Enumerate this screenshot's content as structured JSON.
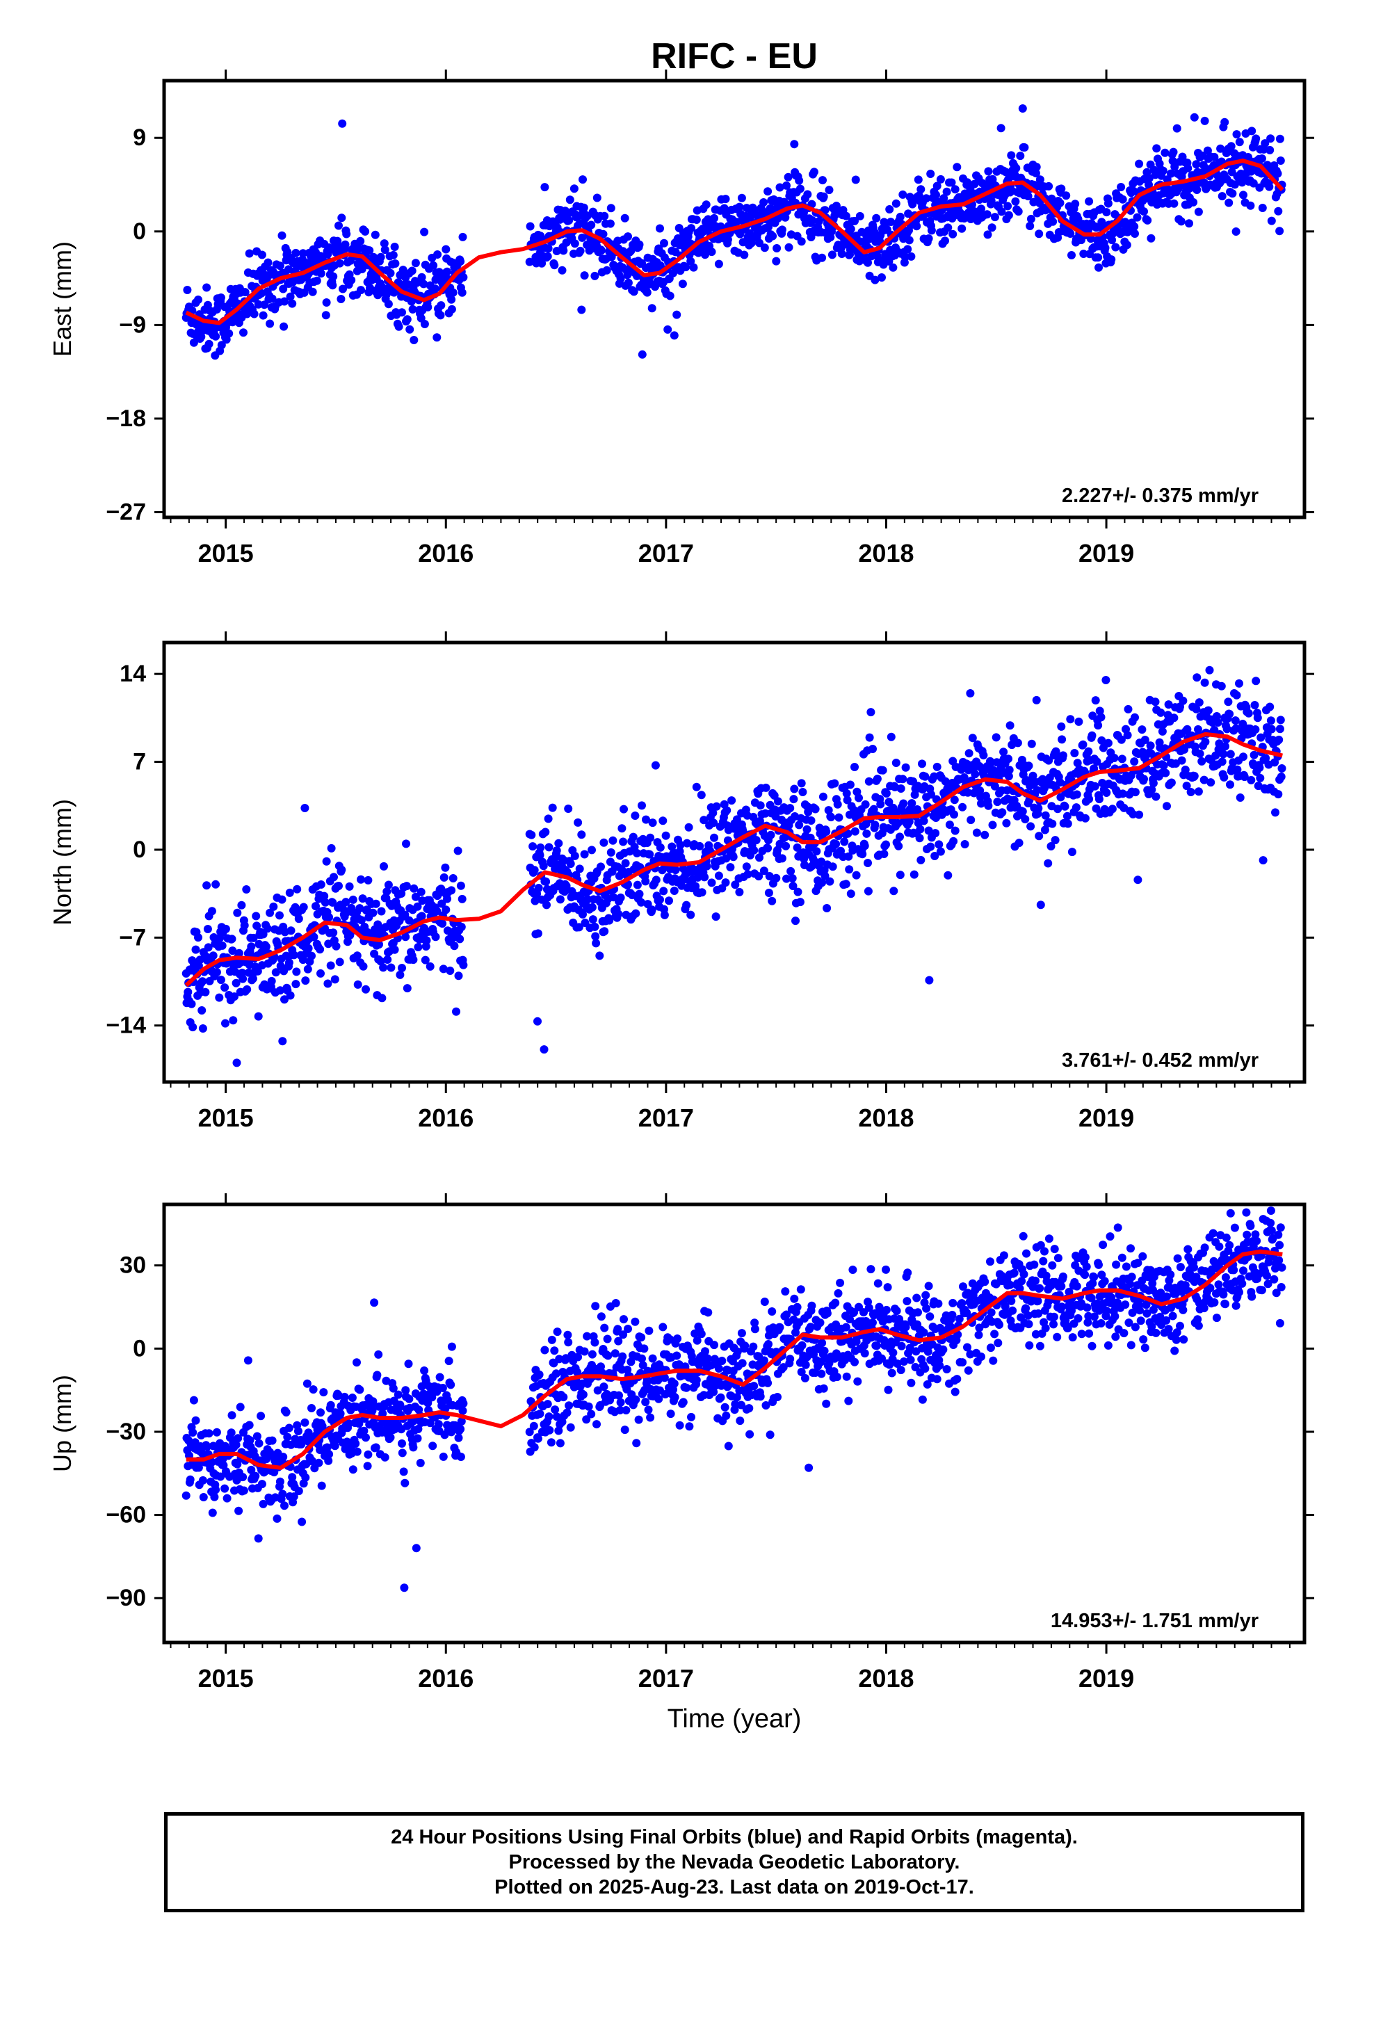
{
  "title": "RIFC - EU",
  "xlabel": "Time (year)",
  "caption": [
    "24 Hour Positions Using Final Orbits (blue) and Rapid Orbits (magenta).",
    "Processed by the Nevada Geodetic Laboratory.",
    "Plotted on 2025-Aug-23. Last data on 2019-Oct-17."
  ],
  "colors": {
    "points": "#0000ff",
    "model": "#ff0000",
    "frame": "#000000"
  },
  "chart_data": [
    {
      "type": "scatter",
      "ylabel": "East (mm)",
      "xlim": [
        2014.72,
        2019.9
      ],
      "ylim": [
        -27.5,
        14.5
      ],
      "xticks": [
        2015,
        2016,
        2017,
        2018,
        2019
      ],
      "yticks": [
        9,
        0,
        -9,
        -18,
        -27
      ],
      "rate_label": "2.227+/- 0.375 mm/yr",
      "model": {
        "x": [
          2014.82,
          2014.9,
          2014.97,
          2015.05,
          2015.15,
          2015.25,
          2015.35,
          2015.45,
          2015.55,
          2015.62,
          2015.7,
          2015.8,
          2015.9,
          2015.97,
          2016.05,
          2016.15,
          2016.25,
          2016.35,
          2016.45,
          2016.55,
          2016.62,
          2016.7,
          2016.8,
          2016.9,
          2016.97,
          2017.05,
          2017.15,
          2017.25,
          2017.35,
          2017.45,
          2017.55,
          2017.62,
          2017.7,
          2017.8,
          2017.9,
          2017.97,
          2018.05,
          2018.15,
          2018.25,
          2018.35,
          2018.45,
          2018.55,
          2018.62,
          2018.7,
          2018.8,
          2018.9,
          2018.97,
          2019.05,
          2019.15,
          2019.25,
          2019.35,
          2019.45,
          2019.55,
          2019.62,
          2019.7,
          2019.8
        ],
        "y": [
          -7.8,
          -8.6,
          -8.8,
          -7.5,
          -5.5,
          -4.5,
          -4.0,
          -3.0,
          -2.2,
          -2.4,
          -4.0,
          -5.8,
          -6.6,
          -6.0,
          -4.0,
          -2.5,
          -2.0,
          -1.7,
          -1.0,
          0.0,
          0.1,
          -0.7,
          -2.5,
          -4.2,
          -4.0,
          -2.8,
          -1.0,
          0.0,
          0.5,
          1.2,
          2.2,
          2.5,
          1.8,
          0.0,
          -2.0,
          -1.6,
          0.0,
          1.8,
          2.4,
          2.6,
          3.6,
          4.6,
          4.7,
          3.5,
          1.0,
          -0.3,
          -0.3,
          1.0,
          3.5,
          4.5,
          4.8,
          5.3,
          6.5,
          6.8,
          6.3,
          4.0
        ]
      }
    },
    {
      "type": "scatter",
      "ylabel": "North (mm)",
      "xlim": [
        2014.72,
        2019.9
      ],
      "ylim": [
        -18.5,
        16.5
      ],
      "xticks": [
        2015,
        2016,
        2017,
        2018,
        2019
      ],
      "yticks": [
        14,
        7,
        0,
        -7,
        -14
      ],
      "rate_label": "3.761+/- 0.452 mm/yr",
      "model": {
        "x": [
          2014.82,
          2014.9,
          2014.97,
          2015.05,
          2015.15,
          2015.25,
          2015.35,
          2015.45,
          2015.55,
          2015.62,
          2015.7,
          2015.8,
          2015.9,
          2015.97,
          2016.05,
          2016.15,
          2016.25,
          2016.35,
          2016.45,
          2016.55,
          2016.62,
          2016.7,
          2016.8,
          2016.9,
          2016.97,
          2017.05,
          2017.15,
          2017.25,
          2017.35,
          2017.45,
          2017.55,
          2017.62,
          2017.7,
          2017.8,
          2017.9,
          2017.97,
          2018.05,
          2018.15,
          2018.25,
          2018.35,
          2018.45,
          2018.55,
          2018.62,
          2018.7,
          2018.8,
          2018.9,
          2018.97,
          2019.05,
          2019.15,
          2019.25,
          2019.35,
          2019.45,
          2019.55,
          2019.62,
          2019.7,
          2019.8
        ],
        "y": [
          -10.8,
          -9.5,
          -8.8,
          -8.6,
          -8.7,
          -8.0,
          -7.0,
          -5.8,
          -6.0,
          -7.0,
          -7.2,
          -6.6,
          -5.7,
          -5.4,
          -5.6,
          -5.5,
          -4.9,
          -3.2,
          -1.8,
          -2.2,
          -2.8,
          -3.3,
          -2.6,
          -1.6,
          -1.1,
          -1.2,
          -1.0,
          0.0,
          1.0,
          1.9,
          1.4,
          0.6,
          0.6,
          1.5,
          2.5,
          2.6,
          2.6,
          2.7,
          3.8,
          5.0,
          5.6,
          5.4,
          4.5,
          3.9,
          4.8,
          5.8,
          6.2,
          6.3,
          6.5,
          7.5,
          8.6,
          9.2,
          9.0,
          8.4,
          7.9,
          7.5
        ]
      }
    },
    {
      "type": "scatter",
      "ylabel": "Up (mm)",
      "xlim": [
        2014.72,
        2019.9
      ],
      "ylim": [
        -106,
        52
      ],
      "xticks": [
        2015,
        2016,
        2017,
        2018,
        2019
      ],
      "yticks": [
        30,
        0,
        -30,
        -60,
        -90
      ],
      "rate_label": "14.953+/- 1.751 mm/yr",
      "model": {
        "x": [
          2014.82,
          2014.9,
          2014.97,
          2015.05,
          2015.15,
          2015.25,
          2015.35,
          2015.45,
          2015.55,
          2015.62,
          2015.7,
          2015.8,
          2015.9,
          2015.97,
          2016.05,
          2016.15,
          2016.25,
          2016.35,
          2016.45,
          2016.55,
          2016.62,
          2016.7,
          2016.8,
          2016.9,
          2016.97,
          2017.05,
          2017.15,
          2017.25,
          2017.35,
          2017.45,
          2017.55,
          2017.62,
          2017.7,
          2017.8,
          2017.9,
          2017.97,
          2018.05,
          2018.15,
          2018.25,
          2018.35,
          2018.45,
          2018.55,
          2018.62,
          2018.7,
          2018.8,
          2018.9,
          2018.97,
          2019.05,
          2019.15,
          2019.25,
          2019.35,
          2019.45,
          2019.55,
          2019.62,
          2019.7,
          2019.8
        ],
        "y": [
          -40,
          -40,
          -38,
          -38,
          -42,
          -43,
          -38,
          -30,
          -25,
          -24,
          -25,
          -25,
          -24,
          -23,
          -24,
          -26,
          -28,
          -24,
          -17,
          -11,
          -10,
          -10,
          -11,
          -10,
          -9,
          -8,
          -8,
          -10,
          -13,
          -7,
          0,
          5,
          4,
          4,
          6,
          7,
          5,
          3,
          4,
          8,
          14,
          20,
          20,
          19,
          18,
          20,
          21,
          21,
          19,
          16,
          18,
          23,
          30,
          34,
          35,
          34
        ]
      }
    }
  ]
}
